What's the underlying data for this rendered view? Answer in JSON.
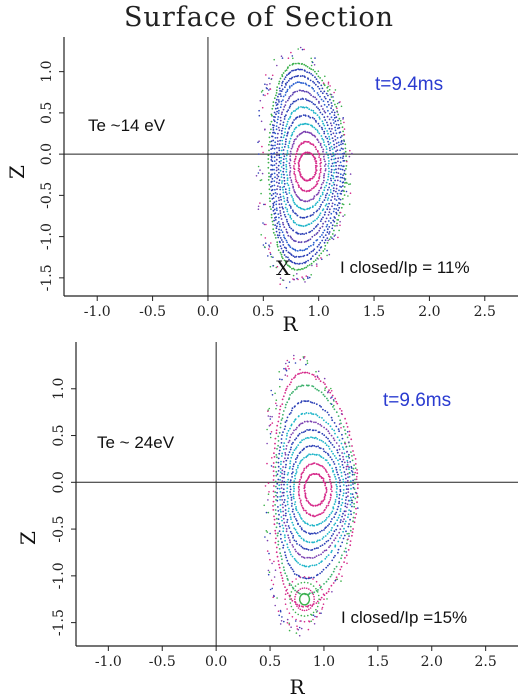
{
  "title": "Surface of Section",
  "chart_data": [
    {
      "type": "scatter",
      "xlabel": "R",
      "ylabel": "Z",
      "xlim": [
        -1.3,
        2.8
      ],
      "ylim": [
        -1.72,
        1.42
      ],
      "xticks": [
        -1.0,
        -0.5,
        0.0,
        0.5,
        1.0,
        1.5,
        2.0,
        2.5
      ],
      "xtick_labels": [
        "-1.0",
        "-0.5",
        "0.0",
        "0.5",
        "1.0",
        "1.5",
        "2.0",
        "2.5"
      ],
      "yticks": [
        1.0,
        0.5,
        0.0,
        -0.5,
        -1.0,
        -1.5
      ],
      "ytick_labels": [
        "1.0",
        "0.5",
        "0.0",
        "-0.5",
        "-1.0",
        "-1.5"
      ],
      "time_label": "t=9.4ms",
      "te_label": "Te ~14 eV",
      "current_label": "I closed/Ip = 11%",
      "x_point": {
        "label": "X",
        "r": 0.68,
        "z": -1.38
      },
      "magnetic_axis": {
        "r": 0.9,
        "z": -0.15
      },
      "surfaces": [
        {
          "a": 0.08,
          "b": 0.17,
          "color": "#d62a8a"
        },
        {
          "a": 0.12,
          "b": 0.3,
          "color": "#d62a8a"
        },
        {
          "a": 0.16,
          "b": 0.42,
          "color": "#7a3fb0"
        },
        {
          "a": 0.19,
          "b": 0.52,
          "color": "#1fb5c9"
        },
        {
          "a": 0.22,
          "b": 0.62,
          "color": "#2b3fb5"
        },
        {
          "a": 0.24,
          "b": 0.72,
          "color": "#1fb5c9"
        },
        {
          "a": 0.26,
          "b": 0.82,
          "color": "#2b3fb5"
        },
        {
          "a": 0.28,
          "b": 0.92,
          "color": "#5a3fb0"
        },
        {
          "a": 0.3,
          "b": 1.02,
          "color": "#2a5fd0"
        },
        {
          "a": 0.32,
          "b": 1.1,
          "color": "#2b3fb5"
        },
        {
          "a": 0.33,
          "b": 1.18,
          "color": "#2b3fb5"
        },
        {
          "a": 0.35,
          "b": 1.25,
          "color": "#3ab04a"
        }
      ],
      "edge_points": {
        "rmin": 0.45,
        "rmax": 1.3,
        "zmin": -1.6,
        "zmax": 1.3
      }
    },
    {
      "type": "scatter",
      "xlabel": "R",
      "ylabel": "Z",
      "xlim": [
        -1.3,
        2.8
      ],
      "ylim": [
        -1.75,
        1.5
      ],
      "xticks": [
        -1.0,
        -0.5,
        0.0,
        0.5,
        1.0,
        1.5,
        2.0,
        2.5
      ],
      "xtick_labels": [
        "-1.0",
        "-0.5",
        "0.0",
        "0.5",
        "1.0",
        "1.5",
        "2.0",
        "2.5"
      ],
      "yticks": [
        1.0,
        0.5,
        0.0,
        -0.5,
        -1.0,
        -1.5
      ],
      "ytick_labels": [
        "1.0",
        "0.5",
        "0.0",
        "-0.5",
        "-1.0",
        "-1.5"
      ],
      "time_label": "t=9.6ms",
      "te_label": "Te ~ 24eV",
      "current_label": "I closed/Ip =15%",
      "magnetic_axis": {
        "r": 0.92,
        "z": -0.08
      },
      "surfaces": [
        {
          "a": 0.1,
          "b": 0.17,
          "color": "#d62a8a"
        },
        {
          "a": 0.15,
          "b": 0.28,
          "color": "#d62a8a"
        },
        {
          "a": 0.2,
          "b": 0.38,
          "color": "#1fb5c9"
        },
        {
          "a": 0.23,
          "b": 0.47,
          "color": "#2b3fb5"
        },
        {
          "a": 0.26,
          "b": 0.56,
          "color": "#1fb5c9"
        },
        {
          "a": 0.29,
          "b": 0.64,
          "color": "#2b3fb5"
        },
        {
          "a": 0.31,
          "b": 0.73,
          "color": "#7a3fb0"
        },
        {
          "a": 0.33,
          "b": 0.82,
          "color": "#1fb5c9"
        },
        {
          "a": 0.35,
          "b": 0.95,
          "color": "#2b3fb5"
        },
        {
          "a": 0.37,
          "b": 1.12,
          "color": "#3ab06a"
        },
        {
          "a": 0.39,
          "b": 1.25,
          "color": "#d62a8a"
        }
      ],
      "lower_island": {
        "r": 0.82,
        "z": -1.25,
        "color": "#3ab04a"
      },
      "edge_points": {
        "rmin": 0.45,
        "rmax": 1.3,
        "zmin": -1.62,
        "zmax": 1.35
      }
    }
  ]
}
